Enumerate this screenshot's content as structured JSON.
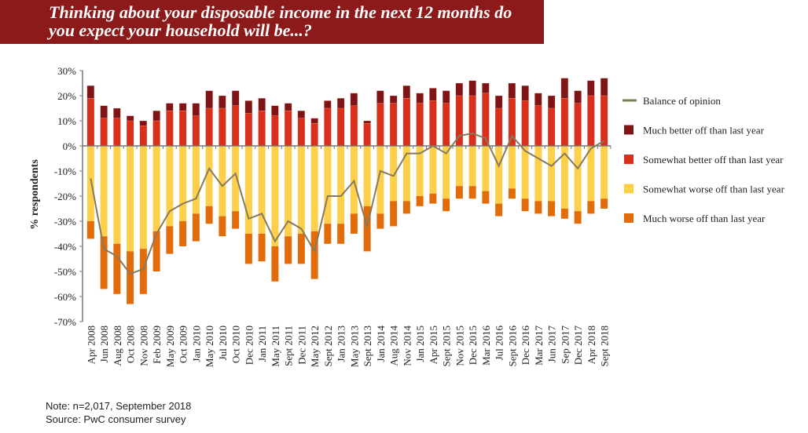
{
  "chart_data": {
    "type": "bar",
    "title": "Thinking about your disposable income in the next 12 months do you expect your household will be...?",
    "xlabel": "",
    "ylabel": "% respondents",
    "ylim": [
      -70,
      30
    ],
    "yticks": [
      "30%",
      "20%",
      "10%",
      "0%",
      "-10%",
      "-20%",
      "-30%",
      "-40%",
      "-50%",
      "-60%",
      "-70%"
    ],
    "ytick_values": [
      30,
      20,
      10,
      0,
      -10,
      -20,
      -30,
      -40,
      -50,
      -60,
      -70
    ],
    "legend_position": "right",
    "categories": [
      "Apr 2008",
      "Jun 2008",
      "Aug 2008",
      "Oct 2008",
      "Nov 2008",
      "Feb 2009",
      "May 2009",
      "Oct 2009",
      "Jan 2010",
      "May 2010",
      "Jul 2010",
      "Oct 2010",
      "Dec 2010",
      "Jan 2011",
      "May 2011",
      "Sept 2011",
      "Dec 2011",
      "May 2012",
      "Sept 2012",
      "Jan 2013",
      "May 2013",
      "Sept 2013",
      "Jan 2014",
      "Aug 2014",
      "Nov 2014",
      "Jan 2015",
      "Apr 2015",
      "Sept 2015",
      "Nov 2015",
      "Dec 2015",
      "Mar 2016",
      "Jul 2016",
      "Sept 2016",
      "Dec 2016",
      "Mar 2017",
      "Jun 2017",
      "Sep 2017",
      "Dec 2017",
      "Apr 2018",
      "Sept 2018"
    ],
    "series": [
      {
        "name": "Somewhat better off than last year",
        "type": "bar",
        "color": "#d9301c",
        "values": [
          19,
          11,
          11,
          10,
          8,
          10,
          14,
          14,
          12,
          15,
          15,
          16,
          13,
          14,
          12,
          14,
          11,
          9,
          15,
          15,
          16,
          9,
          17,
          17,
          19,
          17,
          18,
          17,
          20,
          20,
          21,
          15,
          19,
          18,
          16,
          15,
          19,
          17,
          20,
          20
        ]
      },
      {
        "name": "Much better off than last year",
        "type": "bar",
        "color": "#7f1416",
        "values": [
          5,
          5,
          4,
          2,
          2,
          4,
          3,
          3,
          5,
          7,
          5,
          6,
          5,
          5,
          4,
          3,
          3,
          2,
          3,
          4,
          5,
          1,
          5,
          3,
          5,
          4,
          5,
          5,
          5,
          6,
          4,
          5,
          6,
          6,
          5,
          5,
          8,
          5,
          6,
          7
        ]
      },
      {
        "name": "Somewhat worse off than last year",
        "type": "bar",
        "color": "#fdd04c",
        "values": [
          -30,
          -36,
          -39,
          -42,
          -41,
          -34,
          -32,
          -30,
          -27,
          -24,
          -28,
          -26,
          -35,
          -35,
          -40,
          -36,
          -35,
          -34,
          -31,
          -31,
          -27,
          -24,
          -27,
          -22,
          -22,
          -20,
          -19,
          -21,
          -16,
          -16,
          -18,
          -23,
          -17,
          -21,
          -22,
          -22,
          -25,
          -26,
          -22,
          -21
        ]
      },
      {
        "name": "Much worse off than last year",
        "type": "bar",
        "color": "#e36c0a",
        "values": [
          -7,
          -21,
          -20,
          -21,
          -18,
          -16,
          -11,
          -10,
          -11,
          -7,
          -8,
          -7,
          -12,
          -11,
          -14,
          -11,
          -12,
          -19,
          -8,
          -8,
          -8,
          -18,
          -6,
          -10,
          -5,
          -4,
          -4,
          -5,
          -5,
          -5,
          -5,
          -5,
          -4,
          -5,
          -5,
          -6,
          -4,
          -5,
          -5,
          -4
        ]
      },
      {
        "name": "Balance of opinion",
        "type": "line",
        "color": "#857a5e",
        "values": [
          -13,
          -41,
          -44,
          -51,
          -49,
          -35,
          -26,
          -23,
          -21,
          -9,
          -16,
          -11,
          -29,
          -27,
          -38,
          -30,
          -33,
          -42,
          -20,
          -20,
          -14,
          -32,
          -10,
          -12,
          -3,
          -3,
          0,
          -3,
          4,
          5,
          3,
          -8,
          4,
          -2,
          -5,
          -8,
          -3,
          -9,
          -1,
          2
        ]
      }
    ],
    "legend": [
      "Balance of opinion",
      "Much better off than last year",
      "Somewhat better off than last year",
      "Somewhat worse off than last year",
      "Much worse off than last year"
    ]
  },
  "notes": {
    "note": "Note: n=2,017, September 2018",
    "source": "Source: PwC consumer survey"
  }
}
